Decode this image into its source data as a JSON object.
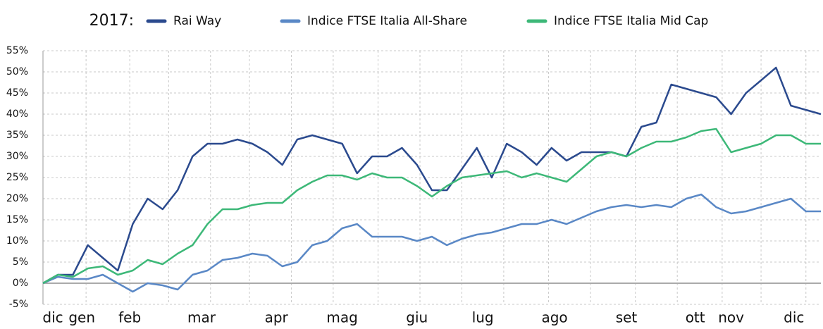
{
  "chart_data": {
    "type": "line",
    "legend_title": "2017:",
    "x": [
      0,
      5,
      10,
      15,
      20,
      25,
      30,
      35,
      40,
      45,
      50,
      55,
      60,
      65,
      70,
      75,
      80,
      85,
      90,
      95,
      100,
      105,
      110,
      115,
      120,
      125,
      130,
      135,
      140,
      145,
      150,
      155,
      160,
      165,
      170,
      175,
      180,
      185,
      190,
      195,
      200,
      205,
      210,
      215,
      220,
      225,
      230,
      235,
      240,
      245,
      250,
      255,
      260
    ],
    "series": [
      {
        "name": "Rai Way",
        "color": "#2b4a8e",
        "values": [
          0,
          2,
          2,
          9,
          6,
          3,
          14,
          20,
          17.5,
          22,
          30,
          33,
          33,
          34,
          33,
          31,
          28,
          34,
          35,
          34,
          33,
          26,
          30,
          30,
          32,
          28,
          22,
          22,
          27,
          32,
          25,
          33,
          31,
          28,
          32,
          29,
          31,
          31,
          31,
          30,
          37,
          38,
          47,
          46,
          45,
          44,
          40,
          45,
          48,
          51,
          42,
          41,
          40
        ]
      },
      {
        "name": "Indice FTSE Italia All-Share",
        "color": "#5a88c6",
        "values": [
          0,
          1.5,
          1,
          1,
          2,
          0,
          -2,
          0,
          -0.5,
          -1.5,
          2,
          3,
          5.5,
          6,
          7,
          6.5,
          4,
          5,
          9,
          10,
          13,
          14,
          11,
          11,
          11,
          10,
          11,
          9,
          10.5,
          11.5,
          12,
          13,
          14,
          14,
          15,
          14,
          15.5,
          17,
          18,
          18.5,
          18,
          18.5,
          18,
          20,
          21,
          18,
          16.5,
          17,
          18,
          19,
          20,
          17,
          17
        ]
      },
      {
        "name": "Indice FTSE Italia Mid Cap",
        "color": "#3db878",
        "values": [
          0,
          2,
          1.5,
          3.5,
          4,
          2,
          3,
          5.5,
          4.5,
          7,
          9,
          14,
          17.5,
          17.5,
          18.5,
          19,
          19,
          22,
          24,
          25.5,
          25.5,
          24.5,
          26,
          25,
          25,
          23,
          20.5,
          23,
          25,
          25.5,
          26,
          26.5,
          25,
          26,
          25,
          24,
          27,
          30,
          31,
          30,
          32,
          33.5,
          33.5,
          34.5,
          36,
          36.5,
          31,
          32,
          33,
          35,
          35,
          33,
          33
        ]
      }
    ],
    "xlim": [
      0,
      260
    ],
    "xticks": [
      {
        "value": 3.3,
        "label": "dic"
      },
      {
        "value": 13,
        "label": "gen"
      },
      {
        "value": 29,
        "label": "feb"
      },
      {
        "value": 53,
        "label": "mar"
      },
      {
        "value": 78,
        "label": "apr"
      },
      {
        "value": 100,
        "label": "mag"
      },
      {
        "value": 125,
        "label": "giu"
      },
      {
        "value": 147,
        "label": "lug"
      },
      {
        "value": 171,
        "label": "ago"
      },
      {
        "value": 195,
        "label": "set"
      },
      {
        "value": 218,
        "label": "ott"
      },
      {
        "value": 230,
        "label": "nov"
      },
      {
        "value": 251,
        "label": "dic"
      }
    ],
    "xgrid": [
      14.4,
      29,
      42,
      56,
      69,
      83,
      97,
      112,
      126,
      140,
      154,
      169,
      183,
      198,
      212,
      227,
      240,
      255
    ],
    "ylim": [
      -5,
      55
    ],
    "yticks": [
      {
        "value": -5,
        "label": "-5%"
      },
      {
        "value": 0,
        "label": "0%"
      },
      {
        "value": 5,
        "label": "5%"
      },
      {
        "value": 10,
        "label": "10%"
      },
      {
        "value": 15,
        "label": "15%"
      },
      {
        "value": 20,
        "label": "20%"
      },
      {
        "value": 25,
        "label": "25%"
      },
      {
        "value": 30,
        "label": "30%"
      },
      {
        "value": 35,
        "label": "35%"
      },
      {
        "value": 40,
        "label": "40%"
      },
      {
        "value": 45,
        "label": "45%"
      },
      {
        "value": 50,
        "label": "50%"
      },
      {
        "value": 55,
        "label": "55%"
      }
    ],
    "grid": true
  }
}
